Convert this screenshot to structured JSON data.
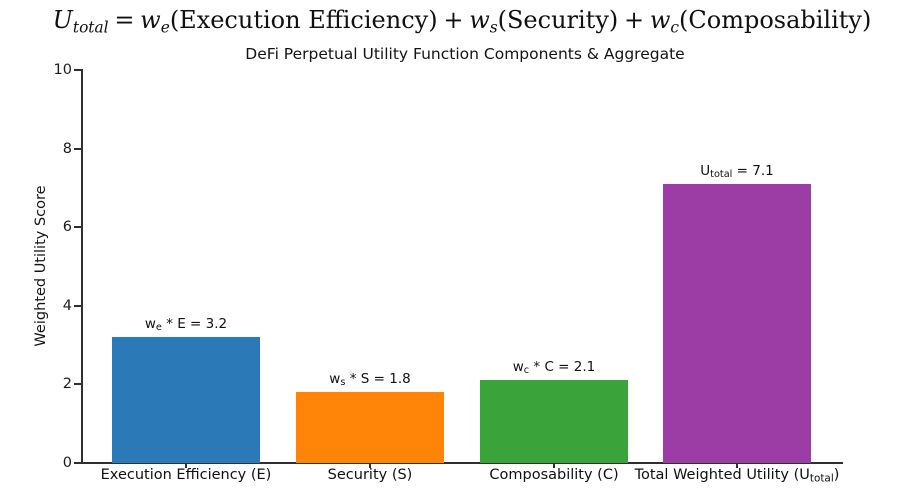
{
  "formula": {
    "u_var": "U",
    "u_sub": "total",
    "equals": "=",
    "w_var": "w",
    "sub_e": "e",
    "sub_s": "s",
    "sub_c": "c",
    "term_e": "(Execution Efficiency)",
    "term_s": "(Security)",
    "term_c": "(Composability)",
    "plus": "+"
  },
  "chart_data": {
    "type": "bar",
    "title": "DeFi Perpetual Utility Function Components & Aggregate",
    "ylabel": "Weighted Utility Score",
    "xlabel": "",
    "ylim": [
      0,
      10
    ],
    "yticks": [
      0,
      2,
      4,
      6,
      8,
      10
    ],
    "grid": false,
    "legend": false,
    "categories": [
      {
        "pre": "Execution Efficiency (E)",
        "sub": "",
        "post": ""
      },
      {
        "pre": "Security (S)",
        "sub": "",
        "post": ""
      },
      {
        "pre": "Composability (C)",
        "sub": "",
        "post": ""
      },
      {
        "pre": "Total Weighted Utility (U",
        "sub": "total",
        "post": ")"
      }
    ],
    "values": [
      3.2,
      1.8,
      2.1,
      7.1
    ],
    "colors": [
      "#2b79b7",
      "#ff8508",
      "#3aa43a",
      "#9c3da5"
    ],
    "bar_labels": [
      {
        "pre": "w",
        "sub": "e",
        "post": " * E = 3.2"
      },
      {
        "pre": "w",
        "sub": "s",
        "post": " * S = 1.8"
      },
      {
        "pre": "w",
        "sub": "c",
        "post": " * C = 2.1"
      },
      {
        "pre": "U",
        "sub": "total",
        "post": " = 7.1"
      }
    ]
  }
}
